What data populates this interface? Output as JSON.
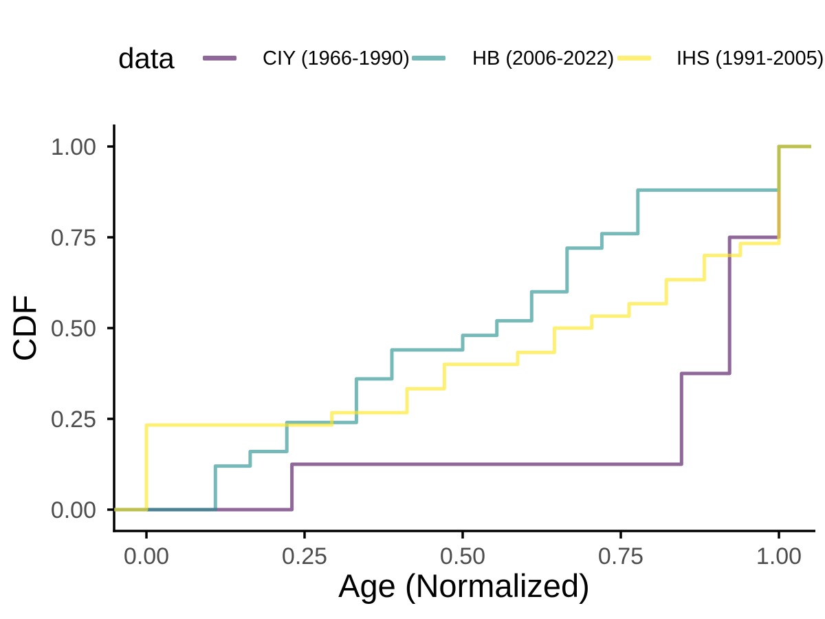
{
  "legend": {
    "title": "data",
    "items": [
      {
        "label": "CIY (1966-1990)",
        "swatch": "rgba(68,1,84,0.60)",
        "hex_over_white": "#8f6799"
      },
      {
        "label": "HB (2006-2022)",
        "swatch": "rgba(33,144,140,0.62)",
        "hex_over_white": "#75bab8"
      },
      {
        "label": "IHS (1991-2005)",
        "swatch": "rgba(253,231,37,0.63)",
        "hex_over_white": "#feef76"
      }
    ]
  },
  "colors": {
    "axis_line": "#000000",
    "tick_label": "#4d4d4d",
    "axis_title": "#000000",
    "background": "#ffffff"
  },
  "chart_data": {
    "type": "line",
    "subtype": "step-ecdf",
    "title": "",
    "xlabel": "Age (Normalized)",
    "ylabel": "CDF",
    "xlim": [
      -0.05,
      1.05
    ],
    "ylim": [
      -0.05,
      1.05
    ],
    "grid": "off",
    "legend_position": "top",
    "x_ticks": [
      {
        "v": 0.0,
        "label": "0.00"
      },
      {
        "v": 0.25,
        "label": "0.25"
      },
      {
        "v": 0.5,
        "label": "0.50"
      },
      {
        "v": 0.75,
        "label": "0.75"
      },
      {
        "v": 1.0,
        "label": "1.00"
      }
    ],
    "y_ticks": [
      {
        "v": 0.0,
        "label": "0.00"
      },
      {
        "v": 0.25,
        "label": "0.25"
      },
      {
        "v": 0.5,
        "label": "0.50"
      },
      {
        "v": 0.75,
        "label": "0.75"
      },
      {
        "v": 1.0,
        "label": "1.00"
      }
    ],
    "series": [
      {
        "name": "CIY (1966-1990)",
        "stroke": "rgba(68,1,84,0.60)",
        "points": [
          [
            -0.051,
            0
          ],
          [
            0.23,
            0
          ],
          [
            0.23,
            0.125
          ],
          [
            0.846,
            0.125
          ],
          [
            0.846,
            0.375
          ],
          [
            0.922,
            0.375
          ],
          [
            0.922,
            0.75
          ],
          [
            1.0,
            0.75
          ],
          [
            1.0,
            1.0
          ],
          [
            1.051,
            1.0
          ]
        ]
      },
      {
        "name": "HB (2006-2022)",
        "stroke": "rgba(33,144,140,0.62)",
        "points": [
          [
            -0.051,
            0
          ],
          [
            0.109,
            0
          ],
          [
            0.109,
            0.12
          ],
          [
            0.164,
            0.12
          ],
          [
            0.164,
            0.16
          ],
          [
            0.222,
            0.16
          ],
          [
            0.222,
            0.24
          ],
          [
            0.332,
            0.24
          ],
          [
            0.332,
            0.36
          ],
          [
            0.388,
            0.36
          ],
          [
            0.388,
            0.44
          ],
          [
            0.5,
            0.44
          ],
          [
            0.5,
            0.48
          ],
          [
            0.554,
            0.48
          ],
          [
            0.554,
            0.52
          ],
          [
            0.609,
            0.52
          ],
          [
            0.609,
            0.6
          ],
          [
            0.665,
            0.6
          ],
          [
            0.665,
            0.72
          ],
          [
            0.72,
            0.72
          ],
          [
            0.72,
            0.76
          ],
          [
            0.777,
            0.76
          ],
          [
            0.777,
            0.88
          ],
          [
            1.0,
            0.88
          ],
          [
            1.0,
            1.0
          ],
          [
            1.051,
            1.0
          ]
        ]
      },
      {
        "name": "IHS (1991-2005)",
        "stroke": "rgba(253,231,37,0.63)",
        "points": [
          [
            -0.051,
            0
          ],
          [
            0.0,
            0
          ],
          [
            0.0,
            0.233
          ],
          [
            0.293,
            0.233
          ],
          [
            0.293,
            0.267
          ],
          [
            0.412,
            0.267
          ],
          [
            0.412,
            0.333
          ],
          [
            0.471,
            0.333
          ],
          [
            0.471,
            0.4
          ],
          [
            0.587,
            0.4
          ],
          [
            0.587,
            0.433
          ],
          [
            0.645,
            0.433
          ],
          [
            0.645,
            0.5
          ],
          [
            0.704,
            0.5
          ],
          [
            0.704,
            0.533
          ],
          [
            0.763,
            0.533
          ],
          [
            0.763,
            0.567
          ],
          [
            0.822,
            0.567
          ],
          [
            0.822,
            0.633
          ],
          [
            0.882,
            0.633
          ],
          [
            0.882,
            0.7
          ],
          [
            0.939,
            0.7
          ],
          [
            0.939,
            0.733
          ],
          [
            1.0,
            0.733
          ],
          [
            1.0,
            1.0
          ],
          [
            1.051,
            1.0
          ]
        ]
      }
    ]
  }
}
